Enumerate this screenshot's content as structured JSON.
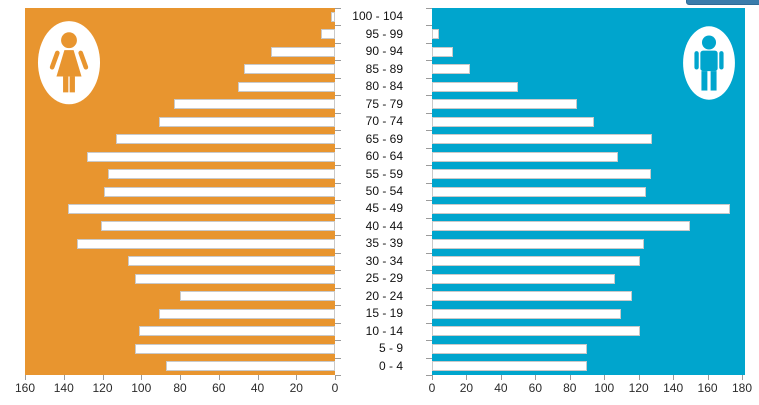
{
  "page": {
    "background": "#ffffff"
  },
  "top_partial_button": {
    "color": "#3a7cab",
    "label": ""
  },
  "chart_data": {
    "type": "bar",
    "variant": "population-pyramid",
    "orientation": "horizontal",
    "grid": false,
    "categories_top_to_bottom": [
      "100 - 104",
      "95 - 99",
      "90 - 94",
      "85 - 89",
      "80 - 84",
      "75 - 79",
      "70 - 74",
      "65 - 69",
      "60 - 64",
      "55 - 59",
      "50 - 54",
      "45 - 49",
      "40 - 44",
      "35 - 39",
      "30 - 34",
      "25 - 29",
      "20 - 24",
      "15 - 19",
      "10 - 14",
      "5 - 9",
      "0 - 4"
    ],
    "bar_fill": "#ffffff",
    "bar_border": "#c9c9c9",
    "series": [
      {
        "name": "female",
        "side": "left",
        "background_color": "#e8952f",
        "icon": "female-icon",
        "axis_direction": "right-to-left",
        "axis_max": 160,
        "axis_tick_labels": [
          "160",
          "140",
          "120",
          "100",
          "80",
          "60",
          "40",
          "20",
          "0"
        ],
        "values": [
          2,
          7,
          33,
          47,
          50,
          83,
          91,
          113,
          128,
          117,
          119,
          138,
          121,
          133,
          107,
          103,
          80,
          91,
          101,
          103,
          87
        ]
      },
      {
        "name": "male",
        "side": "right",
        "background_color": "#00a5cd",
        "icon": "male-icon",
        "axis_direction": "left-to-right",
        "axis_max": 180,
        "axis_tick_labels": [
          "0",
          "20",
          "40",
          "60",
          "80",
          "100",
          "120",
          "140",
          "160",
          "180"
        ],
        "values": [
          0,
          4,
          12,
          22,
          50,
          84,
          94,
          128,
          108,
          127,
          124,
          173,
          150,
          123,
          121,
          106,
          116,
          110,
          121,
          90,
          90
        ]
      }
    ]
  }
}
